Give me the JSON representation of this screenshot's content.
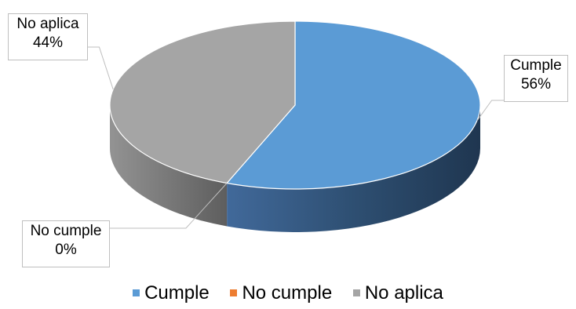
{
  "chart_data": {
    "type": "pie",
    "style": "3d",
    "categories": [
      "Cumple",
      "No cumple",
      "No aplica"
    ],
    "values": [
      56,
      0,
      44
    ],
    "data_labels": [
      {
        "category": "Cumple",
        "value": "56%"
      },
      {
        "category": "No cumple",
        "value": "0%"
      },
      {
        "category": "No aplica",
        "value": "44%"
      }
    ],
    "colors": {
      "Cumple": "#5b9bd5",
      "No cumple": "#ed7d31",
      "No aplica": "#a5a5a5"
    },
    "legend_position": "bottom"
  }
}
